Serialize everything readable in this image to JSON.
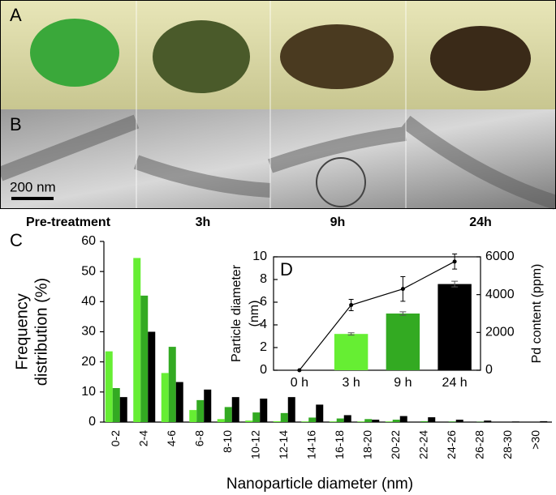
{
  "photos": {
    "label_a": "A",
    "label_b": "B",
    "scale_bar": "200 nm",
    "columns": [
      "Pre-treatment",
      "3h",
      "9h",
      "24h"
    ]
  },
  "chart_data": [
    {
      "type": "bar",
      "label": "C",
      "ylabel": [
        "Frequency",
        "distribution (%)"
      ],
      "xlabel": "Nanoparticle diameter (nm)",
      "categories": [
        "0-2",
        "2-4",
        "4-6",
        "6-8",
        "8-10",
        "10-12",
        "12-14",
        "14-16",
        "16-18",
        "18-20",
        "20-22",
        "22-24",
        "24-26",
        "26-28",
        "28-30",
        ">30"
      ],
      "series": [
        {
          "color": "#66ee33",
          "values": [
            23.5,
            54.5,
            16.3,
            4,
            1,
            0.5,
            0.3,
            0.2,
            0.2,
            0.2,
            0.2,
            0,
            0,
            0,
            0,
            0
          ]
        },
        {
          "color": "#33aa22",
          "values": [
            11.3,
            42,
            25,
            7.3,
            5,
            3.2,
            3,
            1.5,
            1.2,
            1,
            0.8,
            0.3,
            0.2,
            0.1,
            0,
            0
          ]
        },
        {
          "color": "#000000",
          "values": [
            8.3,
            30,
            13.3,
            10.8,
            8.3,
            7.8,
            8.3,
            5.8,
            2.3,
            0.8,
            2,
            1.6,
            0.8,
            0.5,
            0.2,
            0.3
          ]
        }
      ],
      "ylim": [
        0,
        60
      ],
      "yticks": [
        0,
        10,
        20,
        30,
        40,
        50,
        60
      ]
    },
    {
      "type": "bar",
      "label": "D",
      "ylabel": [
        "Particle diameter",
        "(nm)"
      ],
      "y2label": "Pd content (ppm)",
      "categories": [
        "0 h",
        "3 h",
        "9 h",
        "24 h"
      ],
      "series": [
        {
          "colors": [
            "#66ee33",
            "#66ee33",
            "#33aa22",
            "#000000"
          ],
          "values": [
            null,
            3.2,
            5,
            7.6
          ],
          "errors": [
            null,
            0.1,
            0.15,
            0.25
          ]
        },
        {
          "type": "line",
          "axis": "y2",
          "color": "#000000",
          "values": [
            0,
            3450,
            4300,
            5750
          ],
          "errors": [
            0,
            300,
            650,
            400
          ]
        }
      ],
      "ylim": [
        0,
        10
      ],
      "yticks": [
        0,
        2,
        4,
        6,
        8,
        10
      ],
      "y2lim": [
        0,
        6000
      ],
      "y2ticks": [
        0,
        2000,
        4000,
        6000
      ]
    }
  ]
}
